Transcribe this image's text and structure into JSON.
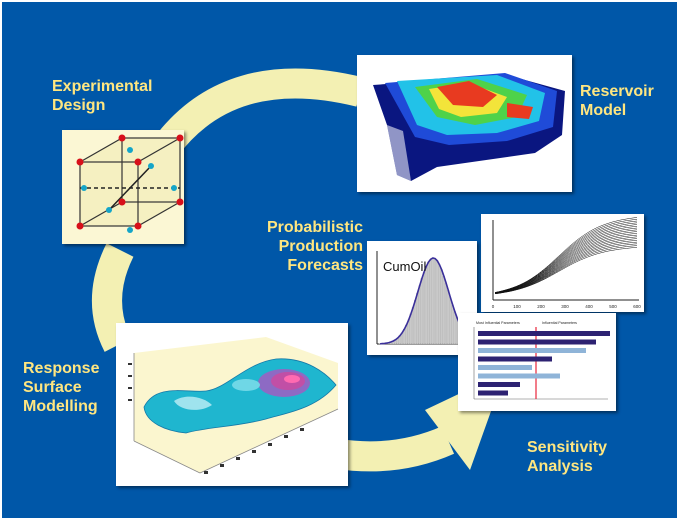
{
  "background_color": "#0057a8",
  "arrow_color": "#f3f0b3",
  "label_color": "#ffe680",
  "labels": {
    "experimental_design": [
      "Experimental",
      "Design"
    ],
    "reservoir_model": [
      "Reservoir",
      "Model"
    ],
    "probabilistic_forecasts": [
      "Probabilistic",
      "Production",
      "Forecasts"
    ],
    "response_surface": [
      "Response",
      "Surface",
      "Modelling"
    ],
    "sensitivity_analysis": [
      "Sensitivity",
      "Analysis"
    ]
  },
  "cumoil_panel": {
    "title": "CumOil"
  },
  "forecast_panel": {
    "x_ticks": [
      "0",
      "100",
      "200",
      "300",
      "400",
      "500",
      "600"
    ]
  },
  "tornado_panel": {
    "left_header": "Most Influential Parameters",
    "right_header": "Influential Parameters"
  }
}
